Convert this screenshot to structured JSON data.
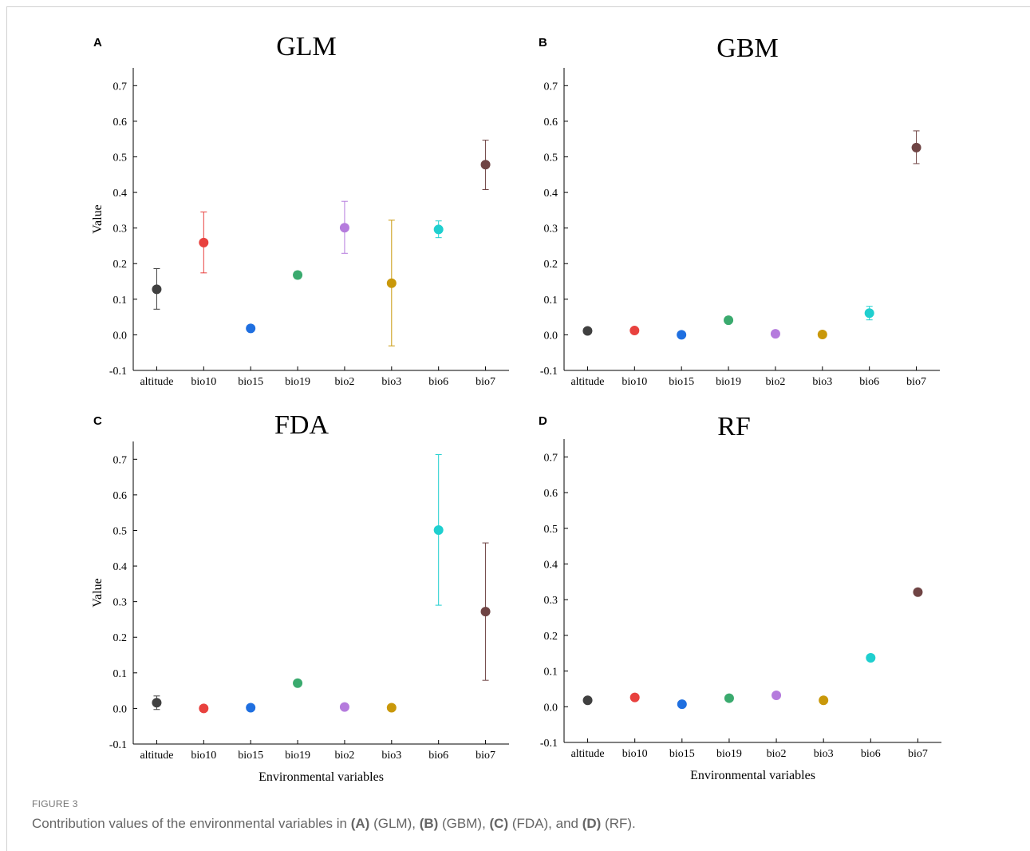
{
  "caption": {
    "figure_label": "FIGURE 3",
    "parts": [
      {
        "text": "Contribution values of the environmental variables in ",
        "bold": false
      },
      {
        "text": "(A)",
        "bold": true
      },
      {
        "text": " (GLM), ",
        "bold": false
      },
      {
        "text": "(B)",
        "bold": true
      },
      {
        "text": " (GBM), ",
        "bold": false
      },
      {
        "text": "(C)",
        "bold": true
      },
      {
        "text": " (FDA), and ",
        "bold": false
      },
      {
        "text": "(D)",
        "bold": true
      },
      {
        "text": " (RF).",
        "bold": false
      }
    ]
  },
  "colors": [
    "#404040",
    "#e8413e",
    "#1f6fe0",
    "#3aaa6e",
    "#b57bdd",
    "#c9980a",
    "#1fcfcf",
    "#6f4444"
  ],
  "chart_data": [
    {
      "panel": "A",
      "type": "scatter",
      "title": "GLM",
      "xlabel": "",
      "ylabel": "Value",
      "ylim": [
        -0.1,
        0.75
      ],
      "yticks": [
        "-0.1",
        "0.0",
        "0.1",
        "0.2",
        "0.3",
        "0.4",
        "0.5",
        "0.6",
        "0.7"
      ],
      "categories": [
        "altitude",
        "bio10",
        "bio15",
        "bio19",
        "bio2",
        "bio3",
        "bio6",
        "bio7"
      ],
      "values": [
        0.128,
        0.259,
        0.018,
        0.168,
        0.301,
        0.145,
        0.296,
        0.478
      ],
      "err_low": [
        0.072,
        0.174,
        0.018,
        0.158,
        0.229,
        -0.031,
        0.273,
        0.408
      ],
      "err_high": [
        0.186,
        0.345,
        0.018,
        0.178,
        0.375,
        0.322,
        0.32,
        0.547
      ]
    },
    {
      "panel": "B",
      "type": "scatter",
      "title": "GBM",
      "xlabel": "",
      "ylabel": "",
      "ylim": [
        -0.1,
        0.75
      ],
      "yticks": [
        "-0.1",
        "0.0",
        "0.1",
        "0.2",
        "0.3",
        "0.4",
        "0.5",
        "0.6",
        "0.7"
      ],
      "categories": [
        "altitude",
        "bio10",
        "bio15",
        "bio19",
        "bio2",
        "bio3",
        "bio6",
        "bio7"
      ],
      "values": [
        0.011,
        0.012,
        0.0,
        0.041,
        0.003,
        0.001,
        0.061,
        0.526
      ],
      "err_low": [
        0.011,
        0.012,
        0.0,
        0.041,
        0.003,
        0.001,
        0.042,
        0.481
      ],
      "err_high": [
        0.011,
        0.012,
        0.0,
        0.041,
        0.003,
        0.001,
        0.08,
        0.573
      ]
    },
    {
      "panel": "C",
      "type": "scatter",
      "title": "FDA",
      "xlabel": "Environmental variables",
      "ylabel": "Value",
      "ylim": [
        -0.1,
        0.75
      ],
      "yticks": [
        "-0.1",
        "0.0",
        "0.1",
        "0.2",
        "0.3",
        "0.4",
        "0.5",
        "0.6",
        "0.7"
      ],
      "categories": [
        "altitude",
        "bio10",
        "bio15",
        "bio19",
        "bio2",
        "bio3",
        "bio6",
        "bio7"
      ],
      "values": [
        0.016,
        0.0,
        0.002,
        0.071,
        0.004,
        0.002,
        0.501,
        0.272
      ],
      "err_low": [
        -0.003,
        0.0,
        0.002,
        0.071,
        0.004,
        0.002,
        0.29,
        0.079
      ],
      "err_high": [
        0.035,
        0.0,
        0.002,
        0.071,
        0.004,
        0.002,
        0.713,
        0.465
      ]
    },
    {
      "panel": "D",
      "type": "scatter",
      "title": "RF",
      "xlabel": "Environmental variables",
      "ylabel": "",
      "ylim": [
        -0.1,
        0.75
      ],
      "yticks": [
        "-0.1",
        "0.0",
        "0.1",
        "0.2",
        "0.3",
        "0.4",
        "0.5",
        "0.6",
        "0.7"
      ],
      "categories": [
        "altitude",
        "bio10",
        "bio15",
        "bio19",
        "bio2",
        "bio3",
        "bio6",
        "bio7"
      ],
      "values": [
        0.018,
        0.026,
        0.007,
        0.024,
        0.032,
        0.018,
        0.137,
        0.321
      ],
      "err_low": [
        0.018,
        0.026,
        0.007,
        0.024,
        0.032,
        0.018,
        0.137,
        0.321
      ],
      "err_high": [
        0.018,
        0.026,
        0.007,
        0.024,
        0.032,
        0.018,
        0.137,
        0.321
      ]
    }
  ]
}
